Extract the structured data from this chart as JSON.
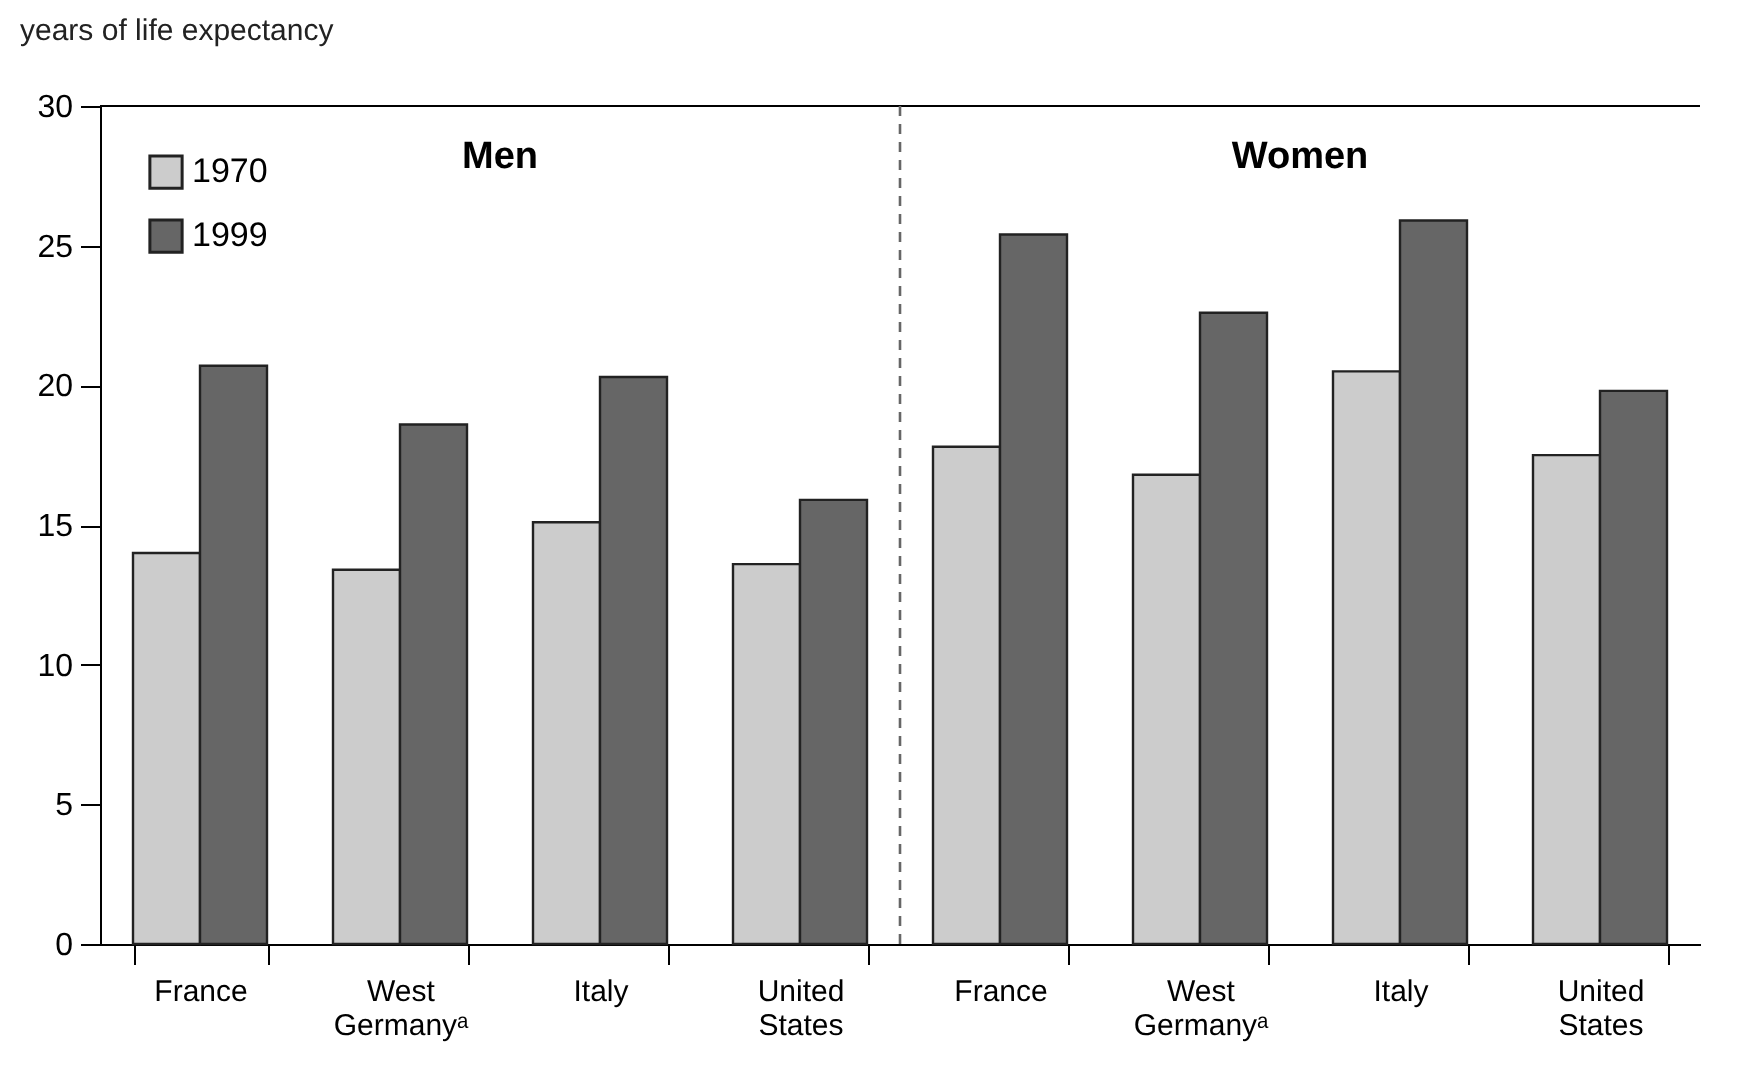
{
  "chart_data": {
    "type": "bar",
    "title": "years of life expectancy",
    "categories": [
      "France",
      "West Germanyᵃ",
      "Italy",
      "United States",
      "France",
      "West Germanyᵃ",
      "Italy",
      "United States"
    ],
    "series": [
      {
        "name": "1970",
        "color": "#cccccc",
        "values": [
          14.0,
          13.4,
          15.1,
          13.6,
          17.8,
          16.8,
          20.5,
          17.5
        ]
      },
      {
        "name": "1999",
        "color": "#666666",
        "values": [
          20.7,
          18.6,
          20.3,
          15.9,
          25.4,
          22.6,
          25.9,
          19.8
        ]
      }
    ],
    "ylim": [
      0,
      30
    ],
    "yticks": [
      0,
      5,
      10,
      15,
      20,
      25,
      30
    ],
    "annotations": [
      "Men",
      "Women"
    ],
    "legend": "top left",
    "grid": false
  }
}
